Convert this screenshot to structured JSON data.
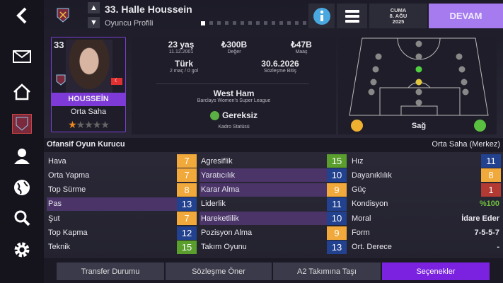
{
  "header": {
    "title": "33. Halle Houssein",
    "subtitle": "Oyuncu Profili",
    "page_count": 14,
    "current_page": 1,
    "date": {
      "day": "CUMA",
      "date": "8. AĞU",
      "year": "2025"
    },
    "continue_label": "DEVAM"
  },
  "sidebar": {
    "items": [
      "back-icon",
      "mail-icon",
      "home-icon",
      "club-badge-icon",
      "person-icon",
      "globe-icon",
      "search-icon",
      "gear-icon"
    ]
  },
  "card": {
    "number": "33",
    "name": "HOUSSEİN",
    "position": "Orta Saha",
    "stars": 1,
    "max_stars": 5,
    "flag": "Turkey"
  },
  "info": {
    "age": "23 yaş",
    "dob": "11.12.2001",
    "value": "₺300B",
    "value_label": "Değer",
    "wage": "₺47B",
    "wage_label": "Maaş",
    "nationality": "Türk",
    "caps": "2 maç / 0 gol",
    "contract_end": "30.6.2026",
    "contract_label": "Sözleşme Bitiş",
    "club": "West Ham",
    "league": "Barclays Women's Super League",
    "squad_status": "Gereksiz",
    "squad_status_label": "Kadro Statüsü"
  },
  "pitch": {
    "foot_label": "Sağ"
  },
  "stats": {
    "role": "Ofansif Oyun Kurucu",
    "position": "Orta Saha (Merkez)",
    "col1": [
      {
        "label": "Hava",
        "value": "7",
        "color": "#f0a93a"
      },
      {
        "label": "Orta Yapma",
        "value": "7",
        "color": "#f0a93a"
      },
      {
        "label": "Top Sürme",
        "value": "8",
        "color": "#f0a93a"
      },
      {
        "label": "Pas",
        "value": "13",
        "color": "#22418f",
        "hl": true
      },
      {
        "label": "Şut",
        "value": "7",
        "color": "#f0a93a"
      },
      {
        "label": "Top Kapma",
        "value": "12",
        "color": "#22418f"
      },
      {
        "label": "Teknik",
        "value": "15",
        "color": "#5a9e2e"
      }
    ],
    "col2": [
      {
        "label": "Agresiflik",
        "value": "15",
        "color": "#5a9e2e"
      },
      {
        "label": "Yaratıcılık",
        "value": "10",
        "color": "#22418f",
        "hl": true
      },
      {
        "label": "Karar Alma",
        "value": "9",
        "color": "#f0a93a",
        "hl": true
      },
      {
        "label": "Liderlik",
        "value": "11",
        "color": "#22418f"
      },
      {
        "label": "Hareketlilik",
        "value": "10",
        "color": "#22418f",
        "hl": true
      },
      {
        "label": "Pozisyon Alma",
        "value": "9",
        "color": "#f0a93a"
      },
      {
        "label": "Takım Oyunu",
        "value": "13",
        "color": "#22418f"
      }
    ],
    "col3": [
      {
        "label": "Hız",
        "value": "11",
        "color": "#22418f"
      },
      {
        "label": "Dayanıklılık",
        "value": "8",
        "color": "#f0a93a"
      },
      {
        "label": "Güç",
        "value": "1",
        "color": "#b23a32"
      },
      {
        "label": "Kondisyon",
        "value": "%100",
        "text": true,
        "tcolor": "#6fbf3e"
      },
      {
        "label": "Moral",
        "value": "İdare Eder",
        "text": true
      },
      {
        "label": "Form",
        "value": "7-5-5-7",
        "text": true
      },
      {
        "label": "Ort. Derece",
        "value": "-",
        "text": true
      }
    ]
  },
  "buttons": [
    "Transfer Durumu",
    "Sözleşme Öner",
    "A2 Takımına Taşı",
    "Seçenekler"
  ]
}
